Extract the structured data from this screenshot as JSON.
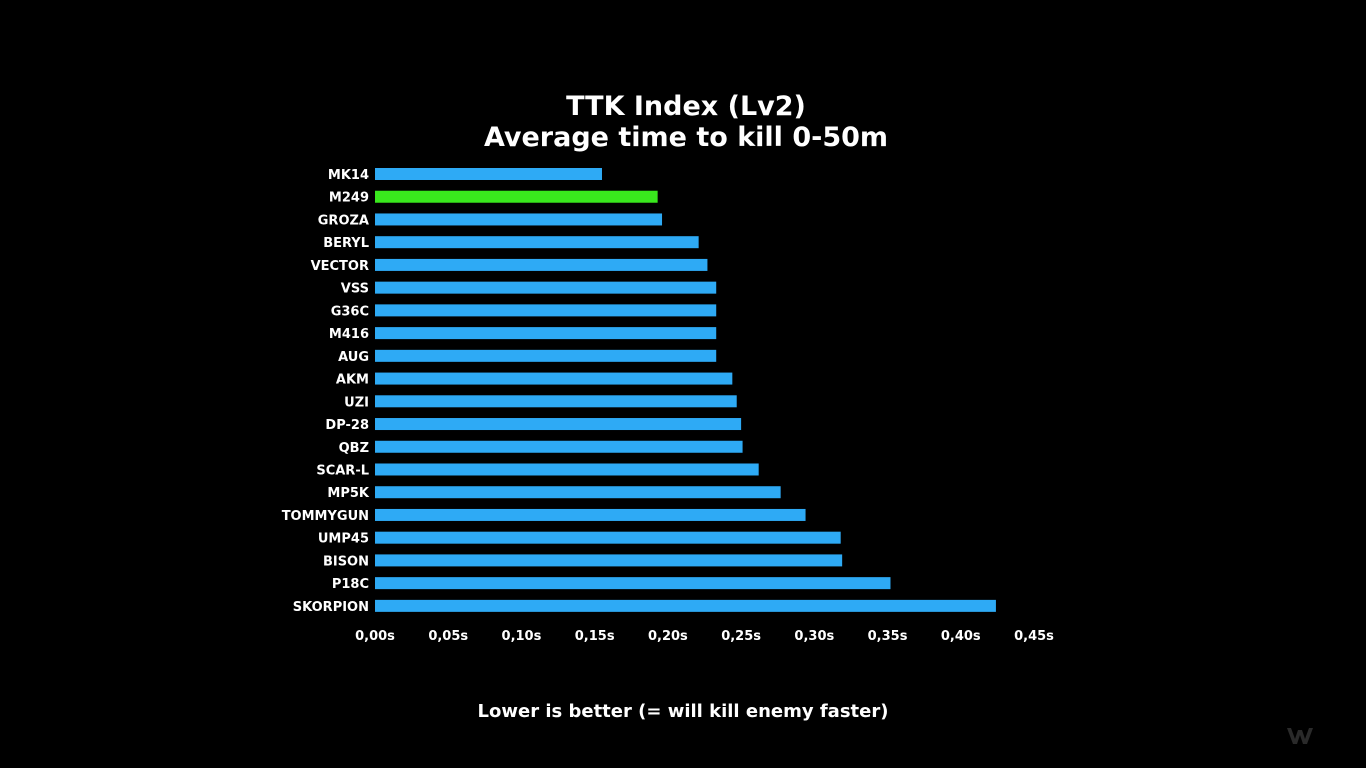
{
  "chart_data": {
    "type": "bar",
    "orientation": "horizontal",
    "title": "TTK Index (Lv2)",
    "subtitle": "Average time to kill 0-50m",
    "footnote": "Lower is better (= will kill enemy faster)",
    "categories": [
      "MK14",
      "M249",
      "GROZA",
      "BERYL",
      "VECTOR",
      "VSS",
      "G36C",
      "M416",
      "AUG",
      "AKM",
      "UZI",
      "DP-28",
      "QBZ",
      "SCAR-L",
      "MP5K",
      "TOMMYGUN",
      "UMP45",
      "BISON",
      "P18C",
      "SKORPION"
    ],
    "values": [
      0.155,
      0.193,
      0.196,
      0.221,
      0.227,
      0.233,
      0.233,
      0.233,
      0.233,
      0.244,
      0.247,
      0.25,
      0.251,
      0.262,
      0.277,
      0.294,
      0.318,
      0.319,
      0.352,
      0.424
    ],
    "highlight": "M249",
    "xlim": [
      0,
      0.45
    ],
    "xticks": [
      "0,00s",
      "0,05s",
      "0,10s",
      "0,15s",
      "0,20s",
      "0,25s",
      "0,30s",
      "0,35s",
      "0,40s",
      "0,45s"
    ],
    "grid": false,
    "colors": {
      "bar": "#2eaaf5",
      "highlight": "#39e81d",
      "background": "#000000",
      "text": "#ffffff"
    }
  },
  "watermark_icon": "logo-icon"
}
